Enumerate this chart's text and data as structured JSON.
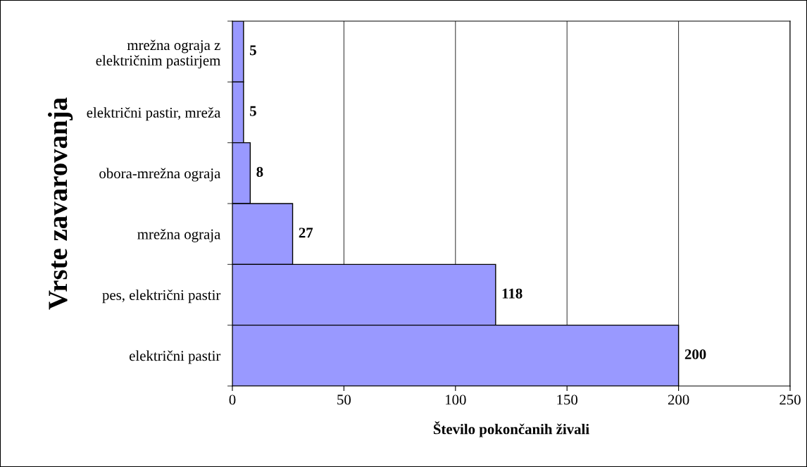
{
  "chart_data": {
    "type": "bar",
    "orientation": "horizontal",
    "xlabel": "Število pokončanih živali",
    "ylabel": "Vrste zavarovanja",
    "categories": [
      "mrežna ograja z\nelektričnim pastirjem",
      "električni pastir, mreža",
      "obora-mrežna ograja",
      "mrežna ograja",
      "pes, električni pastir",
      "električni pastir"
    ],
    "values": [
      5,
      5,
      8,
      27,
      118,
      200
    ],
    "color": "#9999ff",
    "data_labels": true,
    "xlim": [
      0,
      250
    ],
    "xticks": [
      0,
      50,
      100,
      150,
      200,
      250
    ],
    "grid": "x"
  }
}
